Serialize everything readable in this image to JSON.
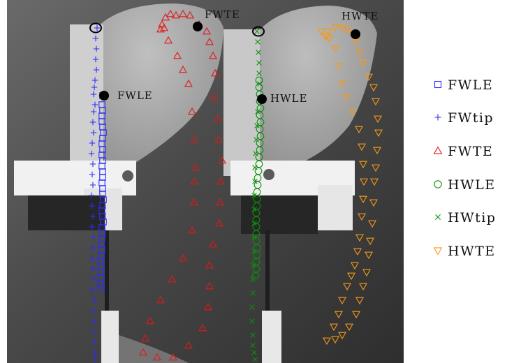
{
  "chart_data": {
    "type": "scatter",
    "background": "photograph",
    "xlim": [
      0,
      578
    ],
    "ylim": [
      0,
      520
    ],
    "grid": false,
    "legend_placement": "right",
    "series": [
      {
        "name": "FWLE",
        "marker": "square",
        "color": "#2b2bff",
        "points": [
          [
            147,
            137
          ],
          [
            146,
            150
          ],
          [
            147,
            158
          ],
          [
            146,
            166
          ],
          [
            146,
            174
          ],
          [
            147,
            182
          ],
          [
            148,
            190
          ],
          [
            147,
            198
          ],
          [
            146,
            206
          ],
          [
            147,
            214
          ],
          [
            146,
            222
          ],
          [
            147,
            230
          ],
          [
            146,
            238
          ],
          [
            147,
            246
          ],
          [
            147,
            254
          ],
          [
            146,
            262
          ],
          [
            147,
            270
          ],
          [
            147,
            278
          ],
          [
            148,
            286
          ],
          [
            147,
            294
          ],
          [
            146,
            302
          ],
          [
            147,
            310
          ],
          [
            148,
            318
          ],
          [
            146,
            326
          ],
          [
            147,
            334
          ],
          [
            146,
            342
          ],
          [
            145,
            350
          ],
          [
            146,
            358
          ],
          [
            145,
            366
          ],
          [
            144,
            374
          ],
          [
            145,
            382
          ],
          [
            144,
            390
          ],
          [
            145,
            398
          ],
          [
            144,
            406
          ],
          [
            145,
            414
          ]
        ]
      },
      {
        "name": "FWtip",
        "marker": "plus",
        "color": "#2b2bff",
        "points": [
          [
            139,
            40
          ],
          [
            137,
            55
          ],
          [
            138,
            70
          ],
          [
            137,
            85
          ],
          [
            138,
            100
          ],
          [
            136,
            115
          ],
          [
            135,
            125
          ],
          [
            134,
            135
          ],
          [
            136,
            150
          ],
          [
            134,
            160
          ],
          [
            133,
            175
          ],
          [
            134,
            190
          ],
          [
            132,
            205
          ],
          [
            131,
            220
          ],
          [
            133,
            235
          ],
          [
            132,
            250
          ],
          [
            133,
            265
          ],
          [
            131,
            280
          ],
          [
            132,
            295
          ],
          [
            133,
            310
          ],
          [
            132,
            325
          ],
          [
            134,
            340
          ],
          [
            133,
            355
          ],
          [
            132,
            370
          ],
          [
            133,
            385
          ],
          [
            134,
            400
          ],
          [
            133,
            415
          ],
          [
            135,
            430
          ],
          [
            134,
            445
          ],
          [
            135,
            460
          ],
          [
            134,
            475
          ],
          [
            135,
            490
          ],
          [
            136,
            505
          ],
          [
            136,
            515
          ]
        ]
      },
      {
        "name": "FWTE",
        "marker": "triangle-up",
        "color": "#e01818",
        "points": [
          [
            232,
            35
          ],
          [
            237,
            25
          ],
          [
            244,
            20
          ],
          [
            252,
            22
          ],
          [
            262,
            20
          ],
          [
            272,
            22
          ],
          [
            285,
            35
          ],
          [
            296,
            45
          ],
          [
            300,
            60
          ],
          [
            305,
            80
          ],
          [
            308,
            105
          ],
          [
            306,
            140
          ],
          [
            312,
            170
          ],
          [
            313,
            200
          ],
          [
            318,
            230
          ],
          [
            316,
            260
          ],
          [
            315,
            290
          ],
          [
            314,
            320
          ],
          [
            305,
            350
          ],
          [
            300,
            380
          ],
          [
            300,
            410
          ],
          [
            298,
            440
          ],
          [
            290,
            470
          ],
          [
            270,
            495
          ],
          [
            248,
            512
          ],
          [
            225,
            512
          ],
          [
            205,
            505
          ],
          [
            208,
            485
          ],
          [
            215,
            460
          ],
          [
            230,
            430
          ],
          [
            246,
            400
          ],
          [
            262,
            370
          ],
          [
            275,
            330
          ],
          [
            278,
            290
          ],
          [
            278,
            260
          ],
          [
            280,
            240
          ],
          [
            278,
            200
          ],
          [
            275,
            160
          ],
          [
            270,
            120
          ],
          [
            262,
            100
          ],
          [
            254,
            80
          ],
          [
            241,
            58
          ],
          [
            235,
            40
          ],
          [
            230,
            42
          ]
        ]
      },
      {
        "name": "HWLE",
        "marker": "circle",
        "color": "#0a8f0a",
        "points": [
          [
            371,
            115
          ],
          [
            371,
            125
          ],
          [
            372,
            135
          ],
          [
            372,
            145
          ],
          [
            373,
            155
          ],
          [
            372,
            165
          ],
          [
            373,
            175
          ],
          [
            372,
            185
          ],
          [
            373,
            195
          ],
          [
            372,
            205
          ],
          [
            372,
            215
          ],
          [
            371,
            225
          ],
          [
            371,
            235
          ],
          [
            370,
            245
          ],
          [
            369,
            255
          ],
          [
            369,
            265
          ],
          [
            368,
            275
          ],
          [
            368,
            285
          ],
          [
            368,
            295
          ],
          [
            367,
            305
          ],
          [
            367,
            315
          ],
          [
            367,
            325
          ],
          [
            367,
            335
          ],
          [
            367,
            345
          ],
          [
            368,
            355
          ],
          [
            368,
            365
          ],
          [
            367,
            375
          ],
          [
            367,
            385
          ],
          [
            366,
            395
          ]
        ]
      },
      {
        "name": "HWtip",
        "marker": "cross",
        "color": "#0a8f0a",
        "points": [
          [
            368,
            45
          ],
          [
            369,
            60
          ],
          [
            370,
            75
          ],
          [
            371,
            90
          ],
          [
            371,
            105
          ],
          [
            372,
            120
          ],
          [
            371,
            140
          ],
          [
            369,
            160
          ],
          [
            368,
            180
          ],
          [
            367,
            200
          ],
          [
            366,
            220
          ],
          [
            365,
            240
          ],
          [
            365,
            260
          ],
          [
            364,
            280
          ],
          [
            364,
            300
          ],
          [
            364,
            320
          ],
          [
            364,
            340
          ],
          [
            364,
            360
          ],
          [
            363,
            380
          ],
          [
            362,
            400
          ],
          [
            362,
            420
          ],
          [
            361,
            440
          ],
          [
            361,
            460
          ],
          [
            362,
            480
          ],
          [
            362,
            495
          ],
          [
            364,
            505
          ],
          [
            365,
            515
          ]
        ]
      },
      {
        "name": "HWTE",
        "marker": "triangle-down",
        "color": "#f59a1a",
        "points": [
          [
            460,
            45
          ],
          [
            466,
            52
          ],
          [
            470,
            45
          ],
          [
            480,
            40
          ],
          [
            490,
            40
          ],
          [
            497,
            42
          ],
          [
            505,
            48
          ],
          [
            510,
            60
          ],
          [
            515,
            75
          ],
          [
            520,
            90
          ],
          [
            528,
            110
          ],
          [
            535,
            125
          ],
          [
            538,
            145
          ],
          [
            541,
            170
          ],
          [
            542,
            190
          ],
          [
            540,
            215
          ],
          [
            538,
            240
          ],
          [
            536,
            260
          ],
          [
            535,
            290
          ],
          [
            533,
            320
          ],
          [
            530,
            345
          ],
          [
            528,
            365
          ],
          [
            525,
            390
          ],
          [
            520,
            410
          ],
          [
            515,
            430
          ],
          [
            510,
            450
          ],
          [
            500,
            468
          ],
          [
            490,
            480
          ],
          [
            480,
            486
          ],
          [
            468,
            488
          ],
          [
            478,
            468
          ],
          [
            485,
            450
          ],
          [
            490,
            430
          ],
          [
            497,
            410
          ],
          [
            503,
            395
          ],
          [
            508,
            380
          ],
          [
            512,
            360
          ],
          [
            515,
            340
          ],
          [
            518,
            310
          ],
          [
            520,
            285
          ],
          [
            521,
            260
          ],
          [
            520,
            235
          ],
          [
            518,
            210
          ],
          [
            514,
            185
          ],
          [
            505,
            160
          ],
          [
            496,
            140
          ],
          [
            490,
            120
          ],
          [
            485,
            95
          ],
          [
            480,
            70
          ],
          [
            472,
            55
          ],
          [
            468,
            52
          ]
        ]
      }
    ],
    "highlight_points": [
      {
        "label": "FWLE",
        "kind": "filled",
        "x": 149,
        "y": 137
      },
      {
        "label": "FWTE",
        "kind": "filled",
        "x": 283,
        "y": 38
      },
      {
        "label": "HWLE",
        "kind": "filled",
        "x": 375,
        "y": 142
      },
      {
        "label": "HWTE",
        "kind": "filled",
        "x": 509,
        "y": 49
      },
      {
        "label": "",
        "kind": "open",
        "x": 137,
        "y": 40
      },
      {
        "label": "",
        "kind": "open",
        "x": 370,
        "y": 45
      }
    ]
  },
  "legend": {
    "entries": [
      {
        "label": "FWLE",
        "marker": "square",
        "color": "#2b2bff"
      },
      {
        "label": "FWtip",
        "marker": "plus",
        "color": "#2b2bff"
      },
      {
        "label": "FWTE",
        "marker": "triangle-up",
        "color": "#e01818"
      },
      {
        "label": "HWLE",
        "marker": "circle",
        "color": "#0a8f0a"
      },
      {
        "label": "HWtip",
        "marker": "cross",
        "color": "#0a8f0a"
      },
      {
        "label": "HWTE",
        "marker": "triangle-down",
        "color": "#f59a1a"
      }
    ]
  },
  "colors": {
    "background_dark": "#3c3c3c",
    "wing_membrane": "#bcbcbc",
    "bracket": "#f2f2f2"
  }
}
